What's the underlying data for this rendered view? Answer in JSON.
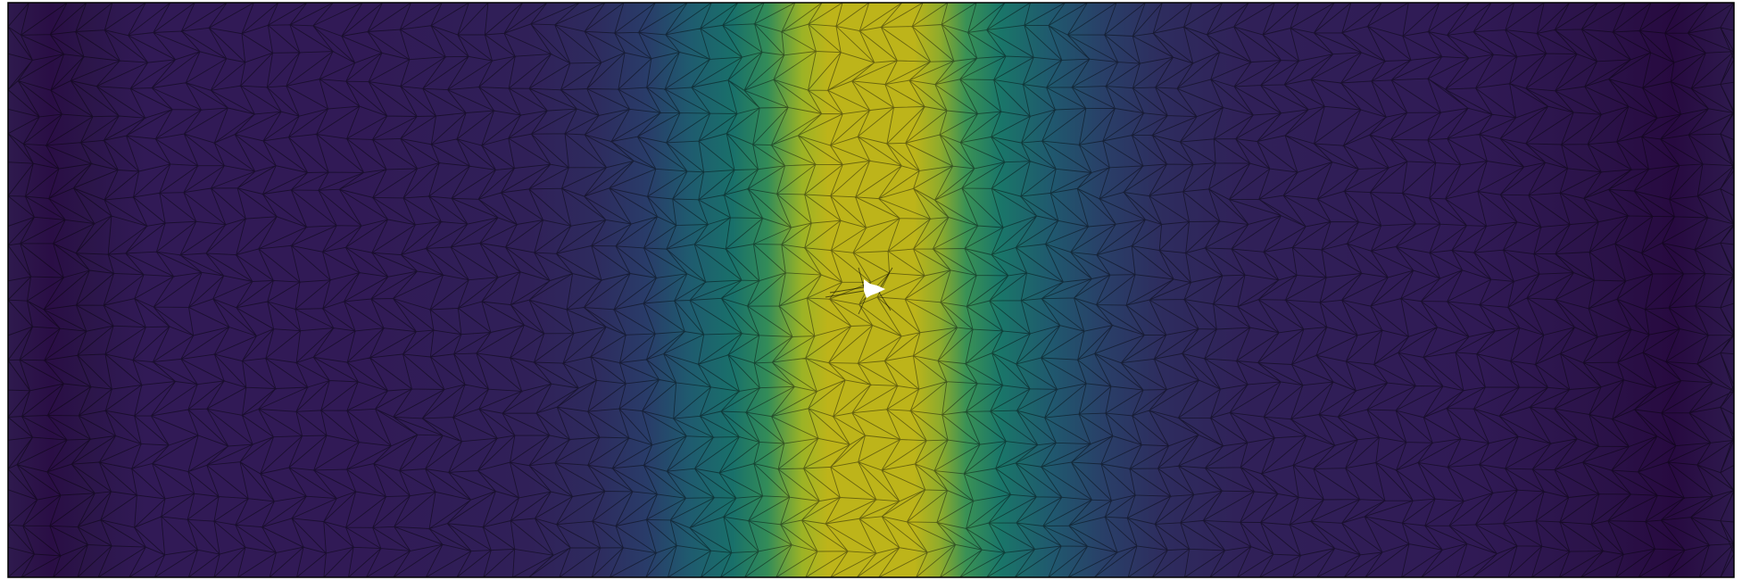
{
  "figure": {
    "description_free": true,
    "colormap": [
      "#440154",
      "#3b528b",
      "#21918c",
      "#5ec962",
      "#fde725"
    ],
    "background": "#ffffff",
    "edge_color": "#000000",
    "frame_color": "#000000",
    "hole_color": "#ffffff"
  }
}
